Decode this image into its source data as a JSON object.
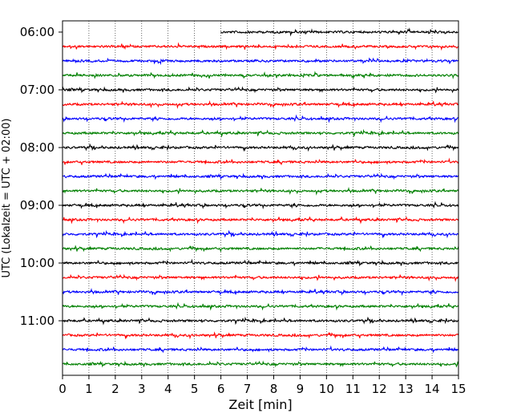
{
  "chart_data": {
    "type": "line",
    "title": "",
    "xlabel": "Zeit  [min]",
    "ylabel": "UTC (Lokalzeit = UTC + 02:00)",
    "xlim": [
      0,
      15
    ],
    "x_ticks": [
      "0",
      "1",
      "2",
      "3",
      "4",
      "5",
      "6",
      "7",
      "8",
      "9",
      "10",
      "11",
      "12",
      "13",
      "14",
      "15"
    ],
    "y_tick_labels": [
      "06:00",
      "07:00",
      "08:00",
      "09:00",
      "10:00",
      "11:00"
    ],
    "trace_interval_min": 15,
    "first_trace_start_min": 6,
    "traces": [
      {
        "start": "06:00",
        "color": "#000000"
      },
      {
        "start": "06:15",
        "color": "#ff0000"
      },
      {
        "start": "06:30",
        "color": "#0000ff"
      },
      {
        "start": "06:45",
        "color": "#008000"
      },
      {
        "start": "07:00",
        "color": "#000000"
      },
      {
        "start": "07:15",
        "color": "#ff0000"
      },
      {
        "start": "07:30",
        "color": "#0000ff"
      },
      {
        "start": "07:45",
        "color": "#008000"
      },
      {
        "start": "08:00",
        "color": "#000000"
      },
      {
        "start": "08:15",
        "color": "#ff0000"
      },
      {
        "start": "08:30",
        "color": "#0000ff"
      },
      {
        "start": "08:45",
        "color": "#008000"
      },
      {
        "start": "09:00",
        "color": "#000000"
      },
      {
        "start": "09:15",
        "color": "#ff0000"
      },
      {
        "start": "09:30",
        "color": "#0000ff"
      },
      {
        "start": "09:45",
        "color": "#008000"
      },
      {
        "start": "10:00",
        "color": "#000000"
      },
      {
        "start": "10:15",
        "color": "#ff0000"
      },
      {
        "start": "10:30",
        "color": "#0000ff"
      },
      {
        "start": "10:45",
        "color": "#008000"
      },
      {
        "start": "11:00",
        "color": "#000000"
      },
      {
        "start": "11:15",
        "color": "#ff0000"
      },
      {
        "start": "11:30",
        "color": "#0000ff"
      },
      {
        "start": "11:45",
        "color": "#008000"
      }
    ],
    "grid": {
      "x": true,
      "y": false,
      "style": "dotted"
    },
    "legend": "none"
  }
}
